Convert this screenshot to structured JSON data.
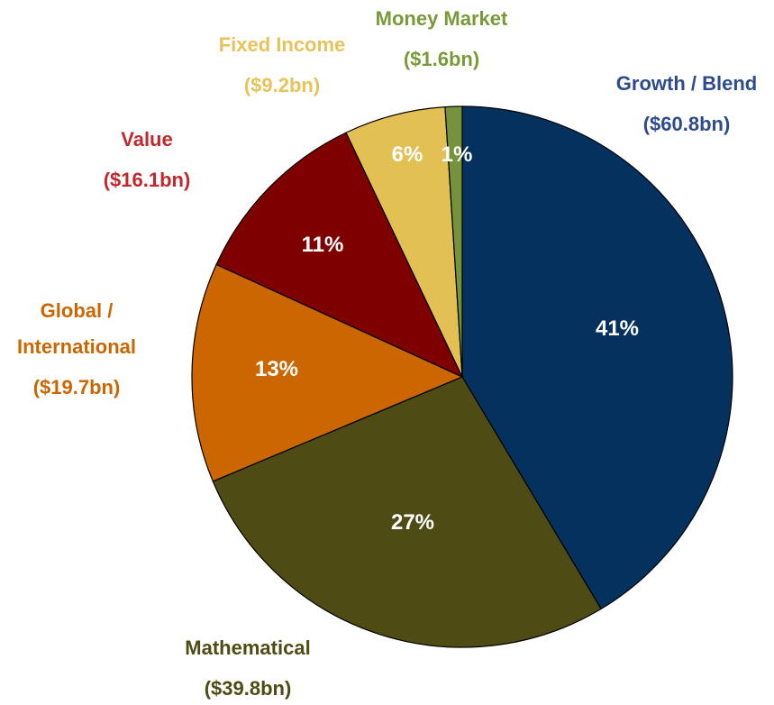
{
  "chart_data": {
    "type": "pie",
    "categories": [
      "Growth / Blend",
      "Mathematical",
      "Global / International",
      "Value",
      "Fixed Income",
      "Money Market"
    ],
    "amount_labels": [
      "($60.8bn)",
      "($39.8bn)",
      "($19.7bn)",
      "($16.1bn)",
      "($9.2bn)",
      "($1.6bn)"
    ],
    "values": [
      41,
      27,
      13,
      11,
      6,
      1
    ],
    "value_labels": [
      "41%",
      "27%",
      "13%",
      "11%",
      "6%",
      "1%"
    ],
    "colors": [
      "#05315f",
      "#4f4b14",
      "#cc6600",
      "#7f0000",
      "#e2c053",
      "#76923c"
    ],
    "label_colors": [
      "#2e4b8f",
      "#4f4b14",
      "#cc6600",
      "#c0282d",
      "#e8c35a",
      "#7a9a3a"
    ]
  }
}
